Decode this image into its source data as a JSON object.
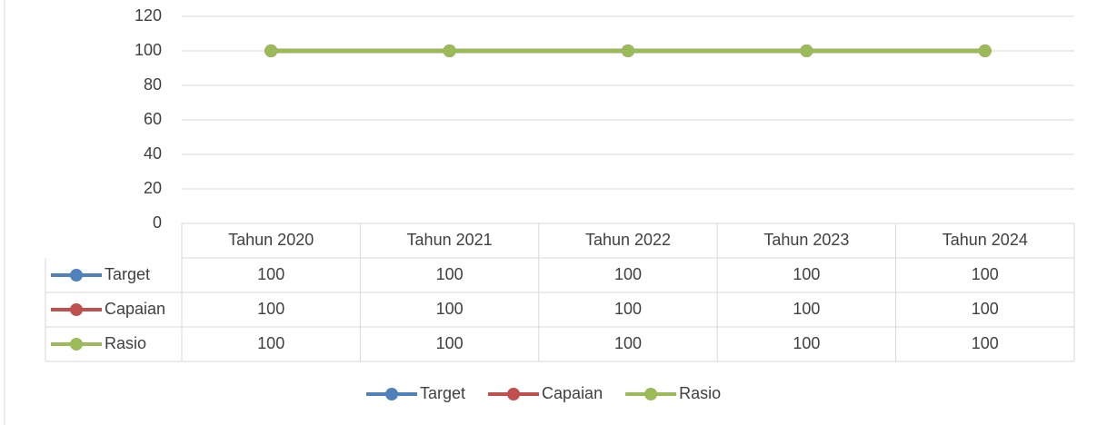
{
  "chart_data": {
    "type": "line",
    "categories": [
      "Tahun 2020",
      "Tahun 2021",
      "Tahun 2022",
      "Tahun 2023",
      "Tahun 2024"
    ],
    "series": [
      {
        "name": "Target",
        "color": "#4f81bd",
        "values": [
          100,
          100,
          100,
          100,
          100
        ]
      },
      {
        "name": "Capaian",
        "color": "#c0504d",
        "values": [
          100,
          100,
          100,
          100,
          100
        ]
      },
      {
        "name": "Rasio",
        "color": "#9bbb59",
        "values": [
          100,
          100,
          100,
          100,
          100
        ]
      }
    ],
    "ylim": [
      0,
      120
    ],
    "yticks": [
      0,
      20,
      40,
      60,
      80,
      100,
      120
    ],
    "grid": true,
    "legend": "bottom",
    "data_table": true
  }
}
